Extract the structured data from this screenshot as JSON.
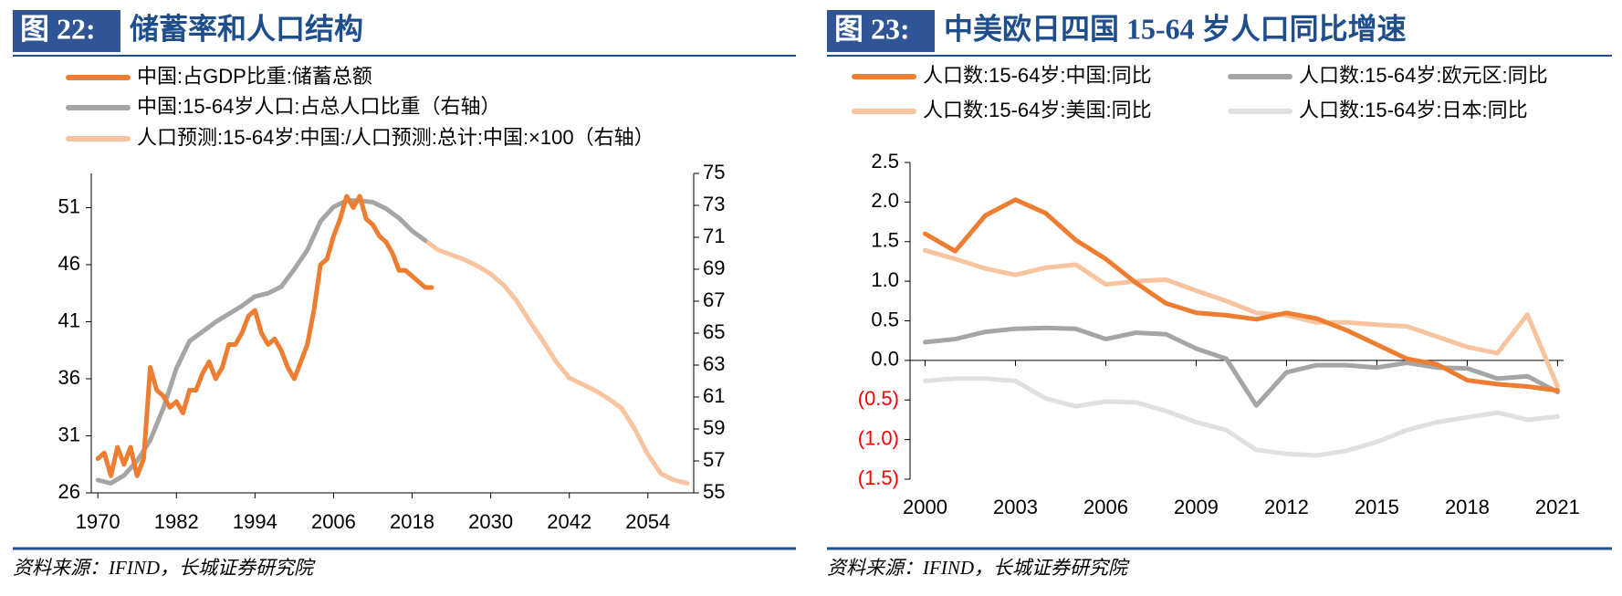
{
  "chart_data": [
    {
      "type": "line",
      "figure_label": "图 22:",
      "title": "储蓄率和人口结构",
      "source": "资料来源：IFIND，长城证券研究院",
      "legend": "top-left",
      "xlim": [
        1969,
        2061
      ],
      "xticks": [
        1970,
        1982,
        1994,
        2006,
        2018,
        2030,
        2042,
        2054
      ],
      "ylim": [
        26,
        54
      ],
      "yticks": [
        26,
        31,
        36,
        41,
        46,
        51
      ],
      "y2lim": [
        55,
        75
      ],
      "y2ticks": [
        55,
        57,
        59,
        61,
        63,
        65,
        67,
        69,
        71,
        73,
        75
      ],
      "series": [
        {
          "name": "中国:占GDP比重:储蓄总额",
          "color": "#ed7d31",
          "x": [
            1970,
            1971,
            1972,
            1973,
            1974,
            1975,
            1976,
            1977,
            1978,
            1979,
            1980,
            1981,
            1982,
            1983,
            1984,
            1985,
            1986,
            1987,
            1988,
            1989,
            1990,
            1991,
            1992,
            1993,
            1994,
            1995,
            1996,
            1997,
            1998,
            1999,
            2000,
            2001,
            2002,
            2003,
            2004,
            2005,
            2006,
            2007,
            2008,
            2009,
            2010,
            2011,
            2012,
            2013,
            2014,
            2015,
            2016,
            2017,
            2018,
            2019,
            2020,
            2021
          ],
          "values": [
            29,
            29.5,
            27.5,
            30,
            28.5,
            30,
            27.5,
            29,
            37,
            35,
            34.5,
            33.5,
            34,
            33,
            35,
            35,
            36.5,
            37.5,
            36,
            37,
            39,
            39,
            40,
            41.5,
            42,
            40,
            39,
            39.5,
            38.5,
            37,
            36,
            37.5,
            39,
            42,
            46,
            46.5,
            48.5,
            50,
            52,
            51,
            52,
            50,
            49.5,
            48.5,
            48,
            47,
            45.5,
            45.5,
            45,
            44.5,
            44,
            44
          ]
        },
        {
          "name": "中国:15-64岁人口:占总人口比重（右轴）",
          "color": "#a5a5a5",
          "axis": "y2",
          "x": [
            1970,
            1972,
            1974,
            1976,
            1978,
            1980,
            1982,
            1984,
            1986,
            1988,
            1990,
            1992,
            1994,
            1996,
            1998,
            2000,
            2002,
            2004,
            2006,
            2008,
            2010,
            2012,
            2014,
            2016,
            2018,
            2020
          ],
          "values": [
            55.8,
            55.6,
            56.1,
            57,
            58.3,
            60.3,
            62.8,
            64.5,
            65.1,
            65.7,
            66.2,
            66.7,
            67.3,
            67.5,
            67.9,
            69,
            70.2,
            72,
            72.9,
            73.3,
            73.3,
            73.2,
            72.8,
            72.2,
            71.4,
            70.8
          ]
        },
        {
          "name": "人口预测:15-64岁:中国:/人口预测:总计:中国:×100（右轴）",
          "color": "#f8c4a0",
          "axis": "y2",
          "x": [
            2020,
            2022,
            2024,
            2026,
            2028,
            2030,
            2032,
            2034,
            2036,
            2038,
            2040,
            2042,
            2044,
            2046,
            2048,
            2050,
            2052,
            2054,
            2056,
            2058,
            2060
          ],
          "values": [
            70.8,
            70.2,
            69.9,
            69.6,
            69.2,
            68.7,
            68,
            67,
            65.7,
            64.5,
            63.2,
            62.2,
            61.8,
            61.4,
            60.9,
            60.3,
            59,
            57.4,
            56.2,
            55.8,
            55.6
          ]
        }
      ]
    },
    {
      "type": "line",
      "figure_label": "图 23:",
      "title": "中美欧日四国 15-64 岁人口同比增速",
      "source": "资料来源：IFIND，长城证券研究院",
      "legend": "top",
      "x": [
        2000,
        2001,
        2002,
        2003,
        2004,
        2005,
        2006,
        2007,
        2008,
        2009,
        2010,
        2011,
        2012,
        2013,
        2014,
        2015,
        2016,
        2017,
        2018,
        2019,
        2020,
        2021
      ],
      "xlim": [
        1999.5,
        2021.2
      ],
      "xticks": [
        2000,
        2003,
        2006,
        2009,
        2012,
        2015,
        2018,
        2021
      ],
      "ylim": [
        -1.5,
        2.5
      ],
      "yticks": [
        {
          "value": -1.5,
          "label": "(1.5)"
        },
        {
          "value": -1,
          "label": "(1.0)"
        },
        {
          "value": -0.5,
          "label": "(0.5)"
        },
        {
          "value": 0,
          "label": "0.0"
        },
        0.5,
        {
          "value": 1,
          "label": "1.0"
        },
        1.5,
        {
          "value": 2,
          "label": "2.0"
        },
        2.5
      ],
      "negative_tick_color": "#ff0000",
      "series": [
        {
          "name": "人口数:15-64岁:中国:同比",
          "color": "#ed7d31",
          "values": [
            1.6,
            1.38,
            1.83,
            2.03,
            1.86,
            1.52,
            1.28,
            0.98,
            0.72,
            0.6,
            0.57,
            0.52,
            0.6,
            0.53,
            0.38,
            0.2,
            0.02,
            -0.05,
            -0.25,
            -0.3,
            -0.33,
            -0.38
          ]
        },
        {
          "name": "人口数:15-64岁:欧元区:同比",
          "color": "#a5a5a5",
          "values": [
            0.23,
            0.27,
            0.36,
            0.4,
            0.41,
            0.4,
            0.27,
            0.35,
            0.33,
            0.15,
            0.02,
            -0.57,
            -0.15,
            -0.06,
            -0.06,
            -0.09,
            -0.03,
            -0.09,
            -0.1,
            -0.23,
            -0.2,
            -0.4
          ]
        },
        {
          "name": "人口数:15-64岁:美国:同比",
          "color": "#f8c4a0",
          "values": [
            1.39,
            1.28,
            1.16,
            1.08,
            1.17,
            1.21,
            0.96,
            1.0,
            1.02,
            0.88,
            0.75,
            0.6,
            0.57,
            0.48,
            0.48,
            0.45,
            0.43,
            0.3,
            0.17,
            0.09,
            0.58,
            -0.33
          ]
        },
        {
          "name": "人口数:15-64岁:日本:同比",
          "color": "#e0e0e0",
          "values": [
            -0.26,
            -0.23,
            -0.23,
            -0.26,
            -0.48,
            -0.58,
            -0.52,
            -0.53,
            -0.64,
            -0.78,
            -0.88,
            -1.13,
            -1.18,
            -1.2,
            -1.14,
            -1.03,
            -0.88,
            -0.78,
            -0.72,
            -0.66,
            -0.75,
            -0.71
          ]
        }
      ]
    }
  ]
}
